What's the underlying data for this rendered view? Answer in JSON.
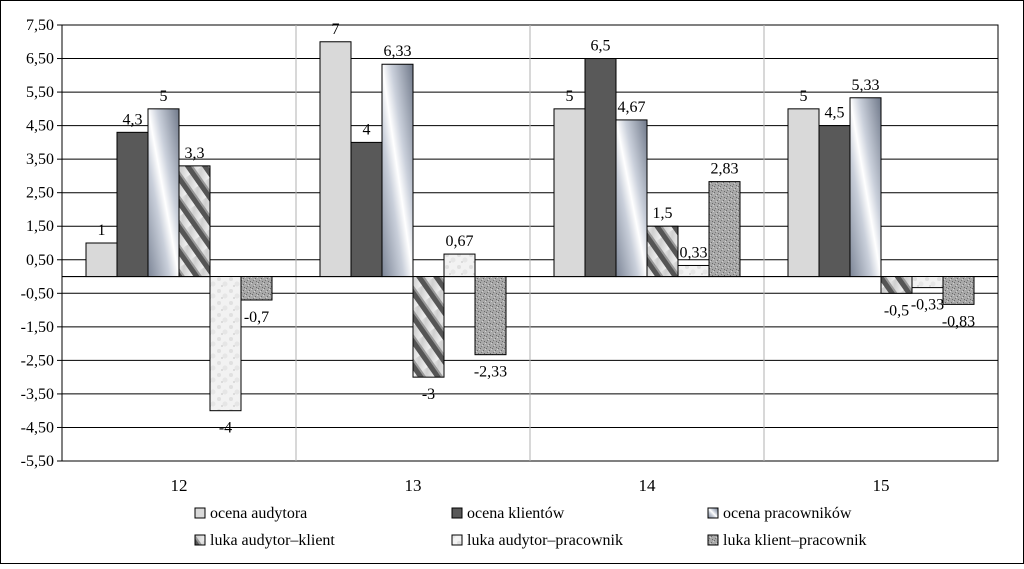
{
  "chart_data": {
    "type": "bar",
    "categories": [
      "12",
      "13",
      "14",
      "15"
    ],
    "y_ticks": [
      "7,50",
      "6,50",
      "5,50",
      "4,50",
      "3,50",
      "2,50",
      "1,50",
      "0,50",
      "-0,50",
      "-1,50",
      "-2,50",
      "-3,50",
      "-4,50",
      "-5,50"
    ],
    "ylim": [
      -5.5,
      7.5
    ],
    "grid": "horizontal",
    "legend_position": "bottom",
    "series": [
      {
        "name": "ocena audytora",
        "values": [
          1,
          7,
          5,
          5
        ],
        "labels": [
          "1",
          "7",
          "5",
          "5"
        ],
        "fill": "solid-light-gray",
        "color": "#d9d9d9"
      },
      {
        "name": "ocena klientów",
        "values": [
          4.3,
          4,
          6.5,
          4.5
        ],
        "labels": [
          "4,3",
          "4",
          "6,5",
          "4,5"
        ],
        "fill": "solid-dark-gray",
        "color": "#595959"
      },
      {
        "name": "ocena pracowników",
        "values": [
          5,
          6.33,
          4.67,
          5.33
        ],
        "labels": [
          "5",
          "6,33",
          "4,67",
          "5,33"
        ],
        "fill": "diagonal-gradient-blue-gray",
        "color": "#8a93a8"
      },
      {
        "name": "luka audytor–klient",
        "values": [
          3.3,
          -3,
          1.5,
          -0.5
        ],
        "labels": [
          "3,3",
          "-3",
          "1,5",
          "-0,5"
        ],
        "fill": "diagonal-stripes",
        "color": "#707070"
      },
      {
        "name": "luka audytor–pracownik",
        "values": [
          -4,
          0.67,
          0.33,
          -0.33
        ],
        "labels": [
          "-4",
          "0,67",
          "0,33",
          "-0,33"
        ],
        "fill": "light-marble",
        "color": "#eeeeee"
      },
      {
        "name": "luka klient–pracownik",
        "values": [
          -0.7,
          -2.33,
          2.83,
          -0.83
        ],
        "labels": [
          "-0,7",
          "-2,33",
          "2,83",
          "-0,83"
        ],
        "fill": "granite-gray",
        "color": "#9a9a9a"
      }
    ]
  }
}
